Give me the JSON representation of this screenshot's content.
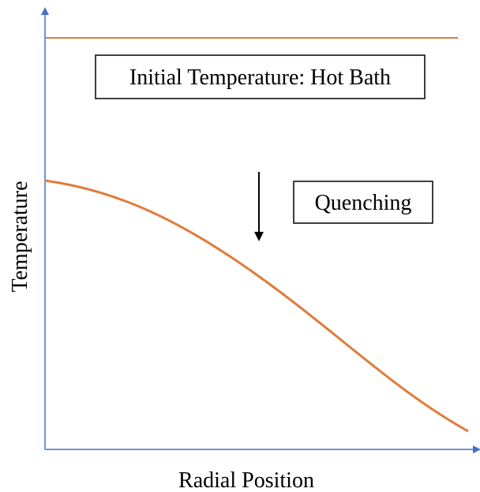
{
  "axes": {
    "x_label": "Radial Position",
    "y_label": "Temperature"
  },
  "annotations": {
    "initial": "Initial Temperature: Hot Bath",
    "process": "Quenching"
  }
}
